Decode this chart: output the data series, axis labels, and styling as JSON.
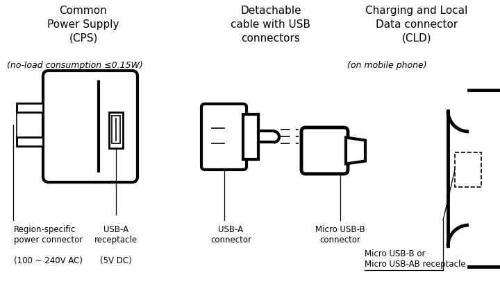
{
  "bg_color": "#ffffff",
  "lc": "#000000",
  "lw_heavy": 3.0,
  "lw_med": 2.0,
  "lw_thin": 1.2,
  "lw_label": 0.9,
  "fig_w": 7.2,
  "fig_h": 4.23,
  "dpi": 100,
  "title_cps": "Common\nPower Supply\n(CPS)",
  "title_cable": "Detachable\ncable with USB\nconnectors",
  "title_cld": "Charging and Local\nData connector\n(CLD)",
  "sub_noload": "(no-load consumption ≤0.15W)",
  "sub_onphone": "(on mobile phone)",
  "lbl_region": "Region-specific\npower connector",
  "lbl_voltage": "(100 ~ 240V AC)",
  "lbl_usba_recep": "USB-A\nreceptacle",
  "lbl_usba_dc": "(5V DC)",
  "lbl_usba_conn": "USB-A\nconnector",
  "lbl_micro_conn": "Micro USB-B\nconnector",
  "lbl_micro_recep": "Micro USB-B or\nMicro USB-AB receptacle"
}
